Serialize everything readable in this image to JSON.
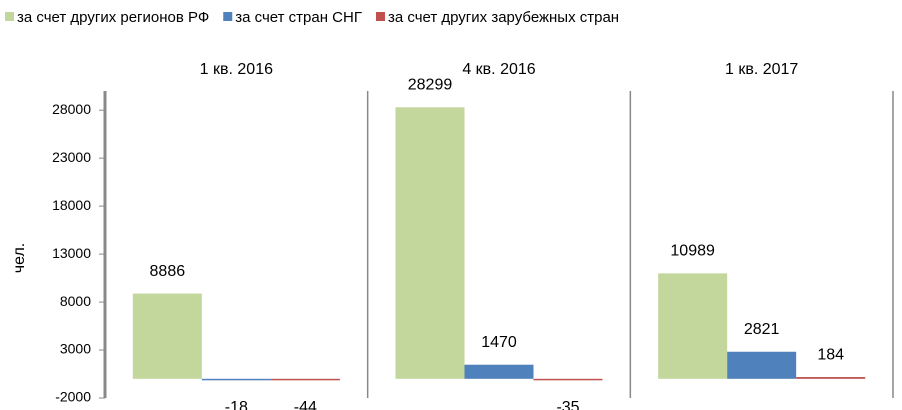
{
  "chart_data": {
    "type": "bar",
    "categories": [
      "1 кв. 2016",
      "4 кв. 2016",
      "1 кв. 2017"
    ],
    "series": [
      {
        "name": "за счет других регионов РФ",
        "color": "#c3d69b",
        "values": [
          8886,
          28299,
          10989
        ]
      },
      {
        "name": "за счет стран СНГ",
        "color": "#4f81bd",
        "values": [
          -18,
          1470,
          2821
        ]
      },
      {
        "name": "за счет других зарубежных стран",
        "color": "#c0504d",
        "values": [
          -44,
          -35,
          184
        ]
      }
    ],
    "y_label": "чел.",
    "ylim": [
      -2000,
      30000
    ],
    "yticks": [
      -2000,
      3000,
      8000,
      13000,
      18000,
      23000,
      28000
    ],
    "legend": "top"
  }
}
